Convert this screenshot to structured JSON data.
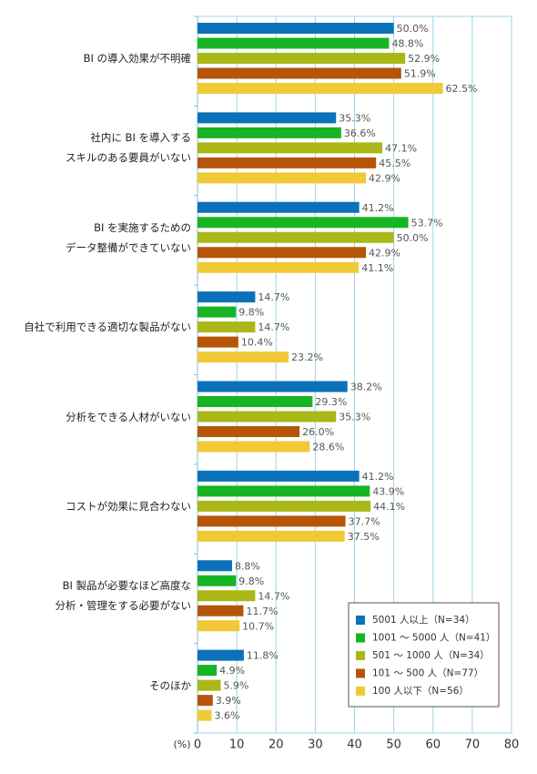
{
  "chart_data": {
    "type": "bar",
    "orientation": "horizontal",
    "categories": [
      "BI の導入効果が不明確",
      "社内に BI を導入する\nスキルのある要員がいない",
      "BI を実施するための\nデータ整備ができていない",
      "自社で利用できる適切な製品がない",
      "分析をできる人材がいない",
      "コストが効果に見合わない",
      "BI 製品が必要なほど高度な\n分析・管理をする必要がない",
      "そのほか"
    ],
    "series": [
      {
        "name": "5001 人以上（N=34）",
        "color": "#0b72b9",
        "values": [
          50.0,
          35.3,
          41.2,
          14.7,
          38.2,
          41.2,
          8.8,
          11.8
        ],
        "value_labels": [
          "50.0%",
          "35.3%",
          "41.2%",
          "14.7%",
          "38.2%",
          "41.2%",
          "8.8%",
          "11.8%"
        ]
      },
      {
        "name": "1001 ～ 5000 人（N=41）",
        "color": "#17b424",
        "values": [
          48.8,
          36.6,
          53.7,
          9.8,
          29.3,
          43.9,
          9.8,
          4.9
        ],
        "value_labels": [
          "48.8%",
          "36.6%",
          "53.7%",
          "9.8%",
          "29.3%",
          "43.9%",
          "9.8%",
          "4.9%"
        ]
      },
      {
        "name": "501 ～ 1000 人（N=34）",
        "color": "#a9b816",
        "values": [
          52.9,
          47.1,
          50.0,
          14.7,
          35.3,
          44.1,
          14.7,
          5.9
        ],
        "value_labels": [
          "52.9%",
          "47.1%",
          "50.0%",
          "14.7%",
          "35.3%",
          "44.1%",
          "14.7%",
          "5.9%"
        ]
      },
      {
        "name": "101 ～ 500 人（N=77）",
        "color": "#b65507",
        "values": [
          51.9,
          45.5,
          42.9,
          10.4,
          26.0,
          37.7,
          11.7,
          3.9
        ],
        "value_labels": [
          "51.9%",
          "45.5%",
          "42.9%",
          "10.4%",
          "26.0%",
          "37.7%",
          "11.7%",
          "3.9%"
        ]
      },
      {
        "name": "100 人以下（N=56）",
        "color": "#f0c934",
        "values": [
          62.5,
          42.9,
          41.1,
          23.2,
          28.6,
          37.5,
          10.7,
          3.6
        ],
        "value_labels": [
          "62.5%",
          "42.9%",
          "41.1%",
          "23.2%",
          "28.6%",
          "37.5%",
          "10.7%",
          "3.6%"
        ]
      }
    ],
    "x_label": "(%)",
    "xlim": [
      0,
      80
    ],
    "xticks": [
      0,
      10,
      20,
      30,
      40,
      50,
      60,
      70,
      80
    ],
    "grid": true,
    "legend": "lower-right"
  }
}
